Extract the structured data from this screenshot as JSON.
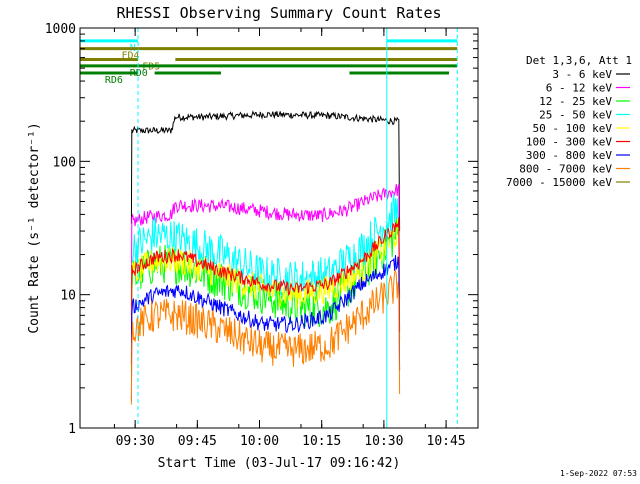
{
  "chart_data": {
    "type": "line",
    "title": "RHESSI Observing Summary Count Rates",
    "xlabel": "Start Time (03-Jul-17 09:16:42)",
    "ylabel": "Count Rate (s⁻¹ detector⁻¹)",
    "y_scale": "log",
    "ylim": [
      1,
      1000
    ],
    "xlim_minutes_after_0916": [
      0,
      96
    ],
    "x_ticks": [
      "09:30",
      "09:45",
      "10:00",
      "10:15",
      "10:30",
      "10:45"
    ],
    "y_ticks": [
      "1",
      "10",
      "100",
      "1000"
    ],
    "legend_header": "Det 1,3,6, Att 1",
    "legend_placement": "right",
    "series": [
      {
        "name": "3 - 6 keV",
        "color": "#000000",
        "values_at_minutes": {
          "x": [
            12.5,
            13,
            22,
            23,
            30,
            45,
            60,
            72,
            76,
            77
          ],
          "y": [
            170,
            170,
            170,
            215,
            215,
            225,
            220,
            205,
            200,
            200
          ]
        }
      },
      {
        "name": "6 - 12 keV",
        "color": "#ff00ff",
        "values_at_minutes": {
          "x": [
            12.5,
            16,
            22,
            23,
            35,
            50,
            58,
            64,
            70,
            77
          ],
          "y": [
            35,
            38,
            40,
            47,
            46,
            40,
            39,
            43,
            52,
            62
          ]
        }
      },
      {
        "name": "12 - 25 keV",
        "color": "#00ff00",
        "values_at_minutes": {
          "x": [
            12.5,
            18,
            24,
            34,
            44,
            52,
            60,
            68,
            77
          ],
          "y": [
            13,
            17,
            17,
            13,
            10,
            8,
            8,
            14,
            30
          ]
        }
      },
      {
        "name": "25 - 50 keV",
        "color": "#00ffff",
        "values_at_minutes": {
          "x": [
            12.5,
            18,
            24,
            34,
            44,
            52,
            60,
            68,
            77
          ],
          "y": [
            22,
            28,
            26,
            20,
            14,
            13,
            14,
            22,
            45
          ]
        }
      },
      {
        "name": "50 - 100 keV",
        "color": "#ffff00",
        "values_at_minutes": {
          "x": [
            12.5,
            18,
            24,
            34,
            44,
            52,
            60,
            68,
            77
          ],
          "y": [
            14,
            18,
            18,
            14,
            11,
            10,
            11,
            15,
            30
          ]
        }
      },
      {
        "name": "100 - 300 keV",
        "color": "#ff0000",
        "values_at_minutes": {
          "x": [
            12.5,
            18,
            24,
            34,
            44,
            52,
            60,
            68,
            77
          ],
          "y": [
            15,
            19,
            20,
            15,
            12,
            11,
            12,
            18,
            35
          ]
        }
      },
      {
        "name": "300 - 800 keV",
        "color": "#0000ff",
        "values_at_minutes": {
          "x": [
            12.5,
            18,
            24,
            34,
            44,
            52,
            60,
            68,
            77
          ],
          "y": [
            8,
            10,
            11,
            8,
            6,
            6,
            7,
            12,
            18
          ]
        }
      },
      {
        "name": "800 - 7000 keV",
        "color": "#ff8000",
        "values_at_minutes": {
          "x": [
            12.5,
            18,
            24,
            34,
            44,
            52,
            60,
            68,
            77
          ],
          "y": [
            5.5,
            7,
            7,
            5.5,
            4,
            3.8,
            4.2,
            7,
            12
          ]
        }
      },
      {
        "name": "7000 - 15000 keV",
        "color": "#808000",
        "values_at_minutes": {
          "x": [],
          "y": []
        }
      }
    ],
    "flag_bars": [
      {
        "label": "N",
        "color": "#00ffff",
        "segments_minutes": [
          [
            0,
            14
          ],
          [
            74,
            91
          ]
        ],
        "level": 800
      },
      {
        "label": "FD4",
        "color": "#808000",
        "segments_minutes": [
          [
            0,
            91
          ]
        ],
        "level": 700
      },
      {
        "label": "FD5",
        "color": "#808000",
        "segments_minutes": [
          [
            0,
            14
          ],
          [
            23,
            91
          ]
        ],
        "level": 580
      },
      {
        "label": "RD0",
        "color": "#008000",
        "segments_minutes": [
          [
            0,
            91
          ]
        ],
        "level": 520
      },
      {
        "label": "RD6",
        "color": "#008000",
        "segments_minutes": [
          [
            0,
            14
          ],
          [
            18,
            34
          ],
          [
            65,
            89
          ]
        ],
        "level": 460
      }
    ],
    "vertical_markers_minutes": [
      {
        "x": 0,
        "style": "solid",
        "color": "#00ffff"
      },
      {
        "x": 14,
        "style": "dashed",
        "color": "#00ffff"
      },
      {
        "x": 74,
        "style": "solid",
        "color": "#00ffff"
      },
      {
        "x": 91,
        "style": "dashed",
        "color": "#00ffff"
      }
    ]
  },
  "footer_date": "1-Sep-2022 07:53"
}
